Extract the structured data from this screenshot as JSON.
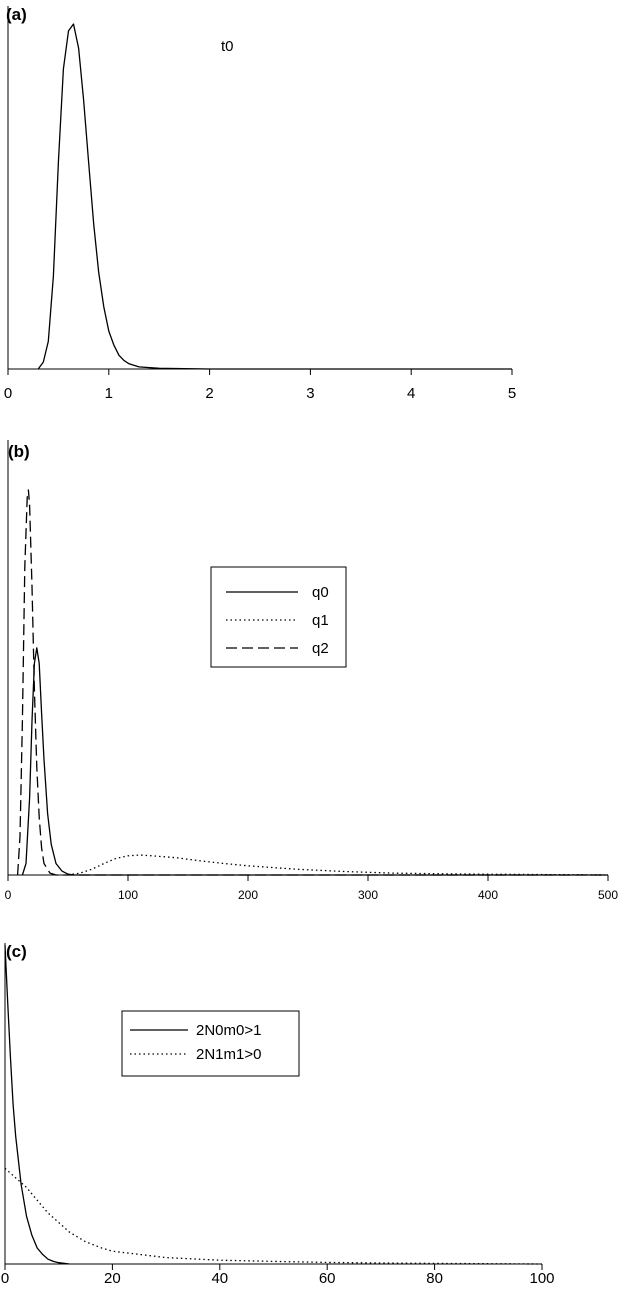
{
  "chart_data": [
    {
      "panel": "(a)",
      "type": "line",
      "title": "",
      "xlabel": "",
      "ylabel": "",
      "annotation": "t0",
      "xlim": [
        0,
        5
      ],
      "xticks": [
        "0",
        "1",
        "2",
        "3",
        "4",
        "5"
      ],
      "yscale": "relative density",
      "grid": false,
      "series": [
        {
          "style": "solid",
          "x": [
            0.3,
            0.35,
            0.4,
            0.45,
            0.5,
            0.55,
            0.6,
            0.65,
            0.7,
            0.75,
            0.8,
            0.85,
            0.9,
            0.95,
            1.0,
            1.05,
            1.1,
            1.15,
            1.2,
            1.3,
            1.5,
            2.0,
            5.0
          ],
          "y": [
            0.0,
            0.02,
            0.08,
            0.27,
            0.6,
            0.87,
            0.98,
            1.0,
            0.93,
            0.78,
            0.6,
            0.42,
            0.28,
            0.18,
            0.11,
            0.07,
            0.04,
            0.025,
            0.015,
            0.006,
            0.002,
            0.0,
            0.0
          ]
        }
      ]
    },
    {
      "panel": "(b)",
      "type": "line",
      "title": "",
      "xlabel": "",
      "ylabel": "",
      "xlim": [
        0,
        500
      ],
      "xticks": [
        "0",
        "100",
        "200",
        "300",
        "400",
        "500"
      ],
      "yscale": "relative density",
      "grid": false,
      "legend": {
        "position": "center-right",
        "entries": [
          "q0",
          "q1",
          "q2"
        ]
      },
      "series": [
        {
          "name": "q0",
          "style": "solid",
          "x": [
            12,
            15,
            18,
            20,
            22,
            24,
            26,
            28,
            30,
            33,
            36,
            40,
            45,
            50,
            55,
            500
          ],
          "y": [
            0.0,
            0.03,
            0.2,
            0.4,
            0.55,
            0.59,
            0.55,
            0.42,
            0.3,
            0.16,
            0.08,
            0.03,
            0.01,
            0.002,
            0.0,
            0.0
          ]
        },
        {
          "name": "q1",
          "style": "dotted",
          "x": [
            50,
            60,
            70,
            80,
            90,
            100,
            110,
            120,
            140,
            160,
            180,
            200,
            240,
            280,
            320,
            360,
            400,
            450,
            500
          ],
          "y": [
            0.0,
            0.005,
            0.015,
            0.03,
            0.043,
            0.05,
            0.052,
            0.05,
            0.045,
            0.037,
            0.03,
            0.024,
            0.015,
            0.009,
            0.005,
            0.003,
            0.002,
            0.001,
            0.0
          ]
        },
        {
          "name": "q2",
          "style": "dashed",
          "x": [
            8,
            10,
            12,
            14,
            16,
            17,
            18,
            20,
            22,
            24,
            26,
            28,
            30,
            35,
            40,
            500
          ],
          "y": [
            0.0,
            0.1,
            0.4,
            0.8,
            0.98,
            1.0,
            0.96,
            0.75,
            0.48,
            0.28,
            0.15,
            0.07,
            0.03,
            0.005,
            0.0,
            0.0
          ]
        }
      ]
    },
    {
      "panel": "(c)",
      "type": "line",
      "title": "",
      "xlabel": "",
      "ylabel": "",
      "xlim": [
        0,
        100
      ],
      "xticks": [
        "0",
        "20",
        "40",
        "60",
        "80",
        "100"
      ],
      "yscale": "relative density",
      "grid": false,
      "legend": {
        "position": "top-center",
        "entries": [
          "2N0m0>1",
          "2N1m1>0"
        ]
      },
      "series": [
        {
          "name": "2N0m0>1",
          "style": "solid",
          "x": [
            0,
            0.5,
            1,
            1.5,
            2,
            3,
            4,
            5,
            6,
            7,
            8,
            9,
            10,
            12
          ],
          "y": [
            1.0,
            0.82,
            0.65,
            0.5,
            0.4,
            0.25,
            0.15,
            0.09,
            0.05,
            0.03,
            0.015,
            0.008,
            0.004,
            0.0
          ]
        },
        {
          "name": "2N1m1>0",
          "style": "dotted",
          "x": [
            0,
            2,
            4,
            6,
            8,
            10,
            12,
            15,
            18,
            20,
            25,
            30,
            40,
            50,
            60,
            70,
            80,
            90,
            100
          ],
          "y": [
            0.3,
            0.27,
            0.24,
            0.2,
            0.16,
            0.13,
            0.1,
            0.07,
            0.05,
            0.04,
            0.03,
            0.02,
            0.012,
            0.008,
            0.005,
            0.003,
            0.002,
            0.001,
            0.0
          ]
        }
      ]
    }
  ]
}
